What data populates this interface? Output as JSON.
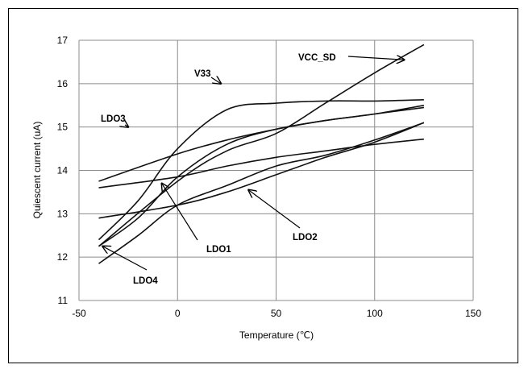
{
  "chart_data": {
    "type": "line",
    "title": "",
    "xlabel": "Temperature (℃)",
    "ylabel": "Quiescent current (uA)",
    "xlim": [
      -50,
      150
    ],
    "ylim": [
      11,
      17
    ],
    "xticks": [
      -50,
      0,
      50,
      100,
      150
    ],
    "yticks": [
      11,
      12,
      13,
      14,
      15,
      16,
      17
    ],
    "grid": true,
    "legend": "none",
    "series": [
      {
        "name": "VCC_SD",
        "x": [
          -40,
          0,
          25,
          50,
          75,
          100,
          125
        ],
        "y": [
          12.25,
          13.75,
          14.45,
          14.85,
          15.55,
          16.25,
          16.9
        ]
      },
      {
        "name": "V33",
        "x": [
          -40,
          -20,
          0,
          25,
          50,
          75,
          100,
          125
        ],
        "y": [
          12.4,
          13.3,
          14.5,
          15.4,
          15.55,
          15.6,
          15.6,
          15.63
        ]
      },
      {
        "name": "LDO3",
        "x": [
          -40,
          0,
          25,
          50,
          75,
          100,
          125
        ],
        "y": [
          13.75,
          14.38,
          14.7,
          14.95,
          15.15,
          15.3,
          15.45
        ]
      },
      {
        "name": "LDO1",
        "x": [
          -40,
          -20,
          0,
          25,
          50,
          75,
          100,
          125
        ],
        "y": [
          12.25,
          12.9,
          13.85,
          14.6,
          14.95,
          15.15,
          15.3,
          15.5
        ]
      },
      {
        "name": "LDO2",
        "x": [
          -40,
          0,
          25,
          50,
          75,
          100,
          125
        ],
        "y": [
          13.6,
          13.85,
          14.1,
          14.3,
          14.45,
          14.6,
          14.72
        ]
      },
      {
        "name": "LDO4",
        "x": [
          -40,
          -20,
          0,
          25,
          50,
          75,
          100,
          125
        ],
        "y": [
          11.85,
          12.5,
          13.2,
          13.65,
          14.1,
          14.35,
          14.7,
          15.1
        ]
      },
      {
        "name": "",
        "x": [
          -40,
          0,
          25,
          50,
          75,
          100,
          125
        ],
        "y": [
          12.9,
          13.2,
          13.5,
          13.9,
          14.3,
          14.65,
          15.1
        ]
      }
    ],
    "annotations": [
      {
        "text": "VCC_SD",
        "points_to": {
          "x": 115,
          "y": 16.55
        }
      },
      {
        "text": "V33",
        "points_to": {
          "x": 22,
          "y": 16.0
        }
      },
      {
        "text": "LDO3",
        "points_to": {
          "x": -25,
          "y": 15.0
        }
      },
      {
        "text": "LDO1",
        "points_to": {
          "x": -8,
          "y": 13.7
        }
      },
      {
        "text": "LDO2",
        "points_to": {
          "x": 36,
          "y": 13.55
        }
      },
      {
        "text": "LDO4",
        "points_to": {
          "x": -38,
          "y": 12.25
        }
      }
    ]
  }
}
